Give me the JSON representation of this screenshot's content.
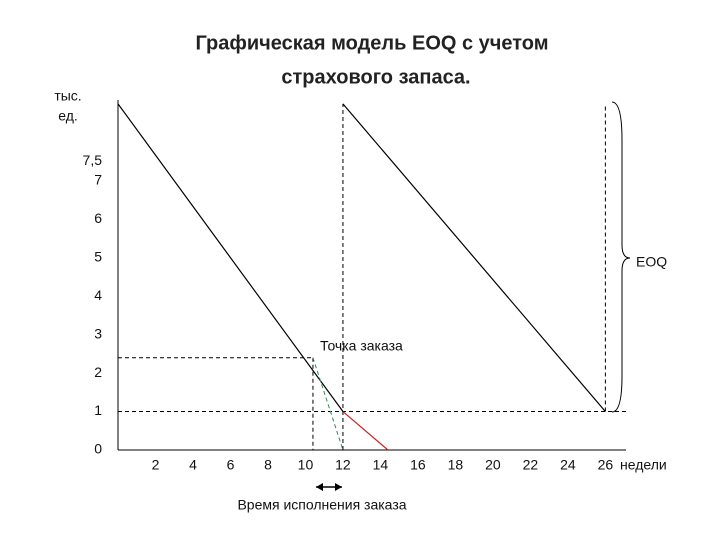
{
  "chart_data": {
    "type": "line",
    "title": [
      "Графическая модель EOQ с учетом",
      "страхового запаса."
    ],
    "y_label": [
      "тыс.",
      "ед."
    ],
    "x_label": "недели",
    "annotations": {
      "reorder_point": "Точка заказа",
      "eoq": "EOQ",
      "lead_time": "Время исполнения заказа"
    },
    "xlim": [
      0,
      27.1
    ],
    "ylim": [
      0,
      9.1
    ],
    "xticks": [
      2,
      4,
      6,
      8,
      10,
      12,
      14,
      16,
      18,
      20,
      22,
      24,
      26
    ],
    "yticks": [
      0,
      1,
      2,
      3,
      4,
      5,
      6,
      7,
      {
        "value": 7.5,
        "label": "7,5"
      }
    ],
    "series": [
      {
        "color": "#000000",
        "dashed": false,
        "x": [
          0,
          12,
          12,
          12,
          26
        ],
        "values": [
          9,
          1,
          null,
          9,
          1
        ]
      },
      {
        "color": "#000000",
        "dashed": true,
        "x": [
          12,
          12
        ],
        "values": [
          0,
          9
        ]
      },
      {
        "color": "#000000",
        "dashed": true,
        "x": [
          26,
          26
        ],
        "values": [
          1,
          9
        ]
      },
      {
        "color": "#000000",
        "dashed": true,
        "x": [
          0,
          27.1
        ],
        "values": [
          1,
          1
        ]
      },
      {
        "color": "#000000",
        "dashed": true,
        "x": [
          0,
          10.4
        ],
        "values": [
          2.4,
          2.4
        ]
      },
      {
        "color": "#000000",
        "dashed": true,
        "x": [
          10.4,
          10.4
        ],
        "values": [
          2.4,
          0
        ]
      },
      {
        "color": "#2e8b57",
        "dashed": true,
        "x": [
          10.4,
          12
        ],
        "values": [
          2.4,
          0
        ]
      },
      {
        "color": "#cc2222",
        "dashed": false,
        "x": [
          12,
          14.4
        ],
        "values": [
          1,
          0
        ]
      }
    ]
  }
}
